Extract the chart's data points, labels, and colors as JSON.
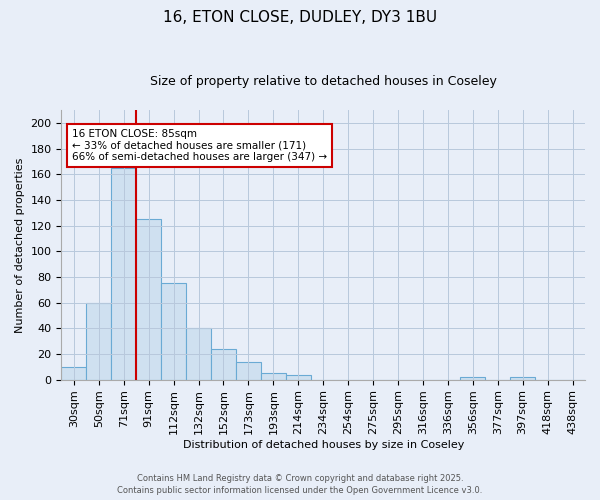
{
  "title1": "16, ETON CLOSE, DUDLEY, DY3 1BU",
  "title2": "Size of property relative to detached houses in Coseley",
  "xlabel": "Distribution of detached houses by size in Coseley",
  "ylabel": "Number of detached properties",
  "categories": [
    "30sqm",
    "50sqm",
    "71sqm",
    "91sqm",
    "112sqm",
    "132sqm",
    "152sqm",
    "173sqm",
    "193sqm",
    "214sqm",
    "234sqm",
    "254sqm",
    "275sqm",
    "295sqm",
    "316sqm",
    "336sqm",
    "356sqm",
    "377sqm",
    "397sqm",
    "418sqm",
    "438sqm"
  ],
  "values": [
    10,
    60,
    165,
    125,
    75,
    40,
    24,
    14,
    5,
    4,
    0,
    0,
    0,
    0,
    0,
    0,
    2,
    0,
    2,
    0,
    0
  ],
  "bar_color": "#cfe0f0",
  "bar_edge_color": "#6aaad4",
  "red_line_index": 2.5,
  "annotation_line1": "16 ETON CLOSE: 85sqm",
  "annotation_line2": "← 33% of detached houses are smaller (171)",
  "annotation_line3": "66% of semi-detached houses are larger (347) →",
  "annotation_box_color": "#ffffff",
  "annotation_box_edge": "#cc0000",
  "red_line_color": "#cc0000",
  "ylim": [
    0,
    210
  ],
  "yticks": [
    0,
    20,
    40,
    60,
    80,
    100,
    120,
    140,
    160,
    180,
    200
  ],
  "footer1": "Contains HM Land Registry data © Crown copyright and database right 2025.",
  "footer2": "Contains public sector information licensed under the Open Government Licence v3.0.",
  "bg_color": "#e8eef8",
  "grid_color": "#b8c8dc",
  "title1_fontsize": 11,
  "title2_fontsize": 9,
  "axis_fontsize": 8,
  "tick_fontsize": 8,
  "annotation_fontsize": 7.5
}
